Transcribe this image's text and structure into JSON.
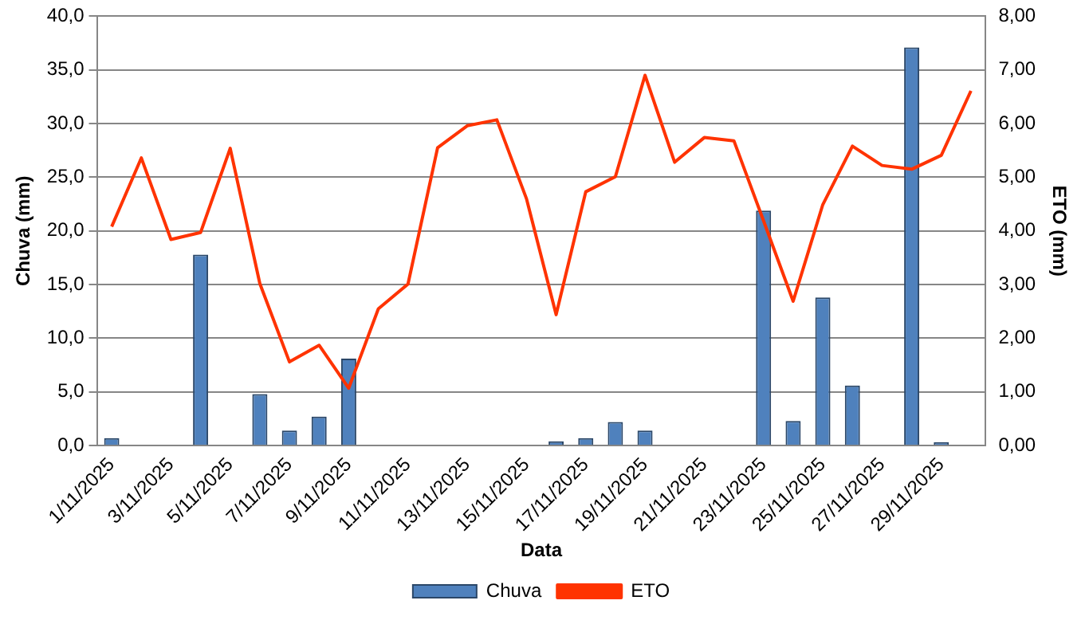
{
  "chart_data": {
    "type": "bar",
    "xlabel": "Data",
    "ylabel": "Chuva (mm)",
    "y2label": "ETO (mm)",
    "categories": [
      "1/11/2025",
      null,
      "3/11/2025",
      null,
      "5/11/2025",
      null,
      "7/11/2025",
      null,
      "9/11/2025",
      null,
      "11/11/2025",
      null,
      "13/11/2025",
      null,
      "15/11/2025",
      null,
      "17/11/2025",
      null,
      "19/11/2025",
      null,
      "21/11/2025",
      null,
      "23/11/2025",
      null,
      "25/11/2025",
      null,
      "27/11/2025",
      null,
      "29/11/2025",
      null
    ],
    "series": [
      {
        "name": "Chuva",
        "color": "#4f81bd",
        "values": [
          0.7,
          null,
          null,
          17.8,
          null,
          4.8,
          1.4,
          2.7,
          8.1,
          null,
          null,
          null,
          null,
          null,
          null,
          0.4,
          0.7,
          2.2,
          1.4,
          null,
          null,
          null,
          21.9,
          2.3,
          13.8,
          5.6,
          null,
          37.1,
          0.3,
          null
        ]
      },
      {
        "name": "ETO",
        "type": "line",
        "axis": "y2",
        "color": "#ff3300",
        "values": [
          4.08,
          5.36,
          3.84,
          3.97,
          5.54,
          3.02,
          1.56,
          1.87,
          1.07,
          2.55,
          3.01,
          5.55,
          5.96,
          6.07,
          4.6,
          2.44,
          4.73,
          5.01,
          6.9,
          5.28,
          5.74,
          5.68,
          4.19,
          2.69,
          4.49,
          5.58,
          5.22,
          5.15,
          5.41,
          6.61
        ]
      }
    ],
    "ylim": [
      0,
      40
    ],
    "yticks": [
      {
        "value": 0,
        "label": "0,0"
      },
      {
        "value": 5,
        "label": "5,0"
      },
      {
        "value": 10,
        "label": "10,0"
      },
      {
        "value": 15,
        "label": "15,0"
      },
      {
        "value": 20,
        "label": "20,0"
      },
      {
        "value": 25,
        "label": "25,0"
      },
      {
        "value": 30,
        "label": "30,0"
      },
      {
        "value": 35,
        "label": "35,0"
      },
      {
        "value": 40,
        "label": "40,0"
      }
    ],
    "y2lim": [
      0,
      8
    ],
    "y2ticks": [
      {
        "value": 0,
        "label": "0,00"
      },
      {
        "value": 1,
        "label": "1,00"
      },
      {
        "value": 2,
        "label": "2,00"
      },
      {
        "value": 3,
        "label": "3,00"
      },
      {
        "value": 4,
        "label": "4,00"
      },
      {
        "value": 5,
        "label": "5,00"
      },
      {
        "value": 6,
        "label": "6,00"
      },
      {
        "value": 7,
        "label": "7,00"
      },
      {
        "value": 8,
        "label": "8,00"
      }
    ],
    "grid": "y",
    "legend": "bottom",
    "marker": "none",
    "line_style": "solid"
  }
}
